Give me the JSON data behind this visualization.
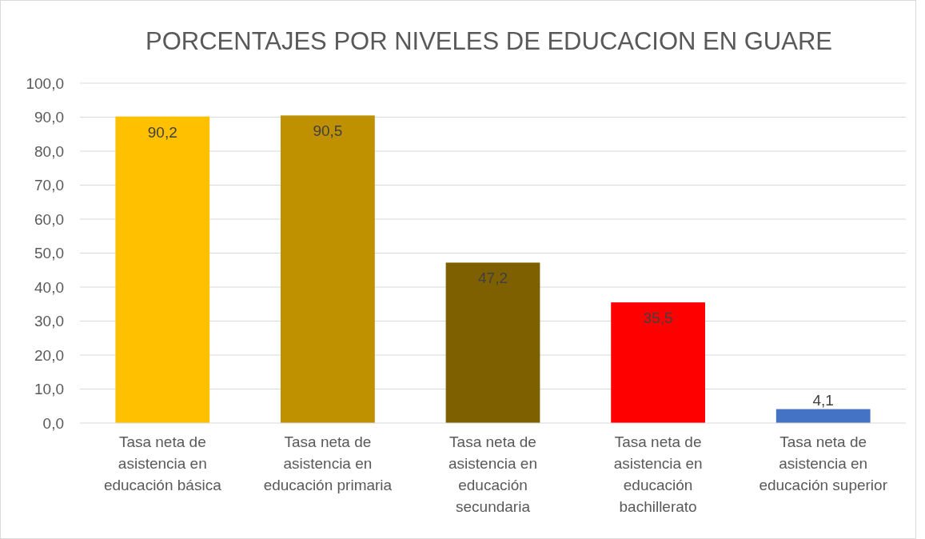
{
  "chart_data": {
    "type": "bar",
    "title": "PORCENTAJES POR NIVELES DE EDUCACION EN GUARE",
    "categories": [
      "Tasa neta de asistencia en educación básica",
      "Tasa neta de asistencia en educación primaria",
      "Tasa neta de asistencia en educación secundaria",
      "Tasa neta de asistencia en educación bachillerato",
      "Tasa neta de asistencia en educación superior"
    ],
    "values": [
      90.2,
      90.5,
      47.2,
      35.5,
      4.1
    ],
    "colors": [
      "#ffc000",
      "#bf9000",
      "#7f6000",
      "#ff0000",
      "#4472c4"
    ],
    "value_labels": [
      "90,2",
      "90,5",
      "47,2",
      "35,5",
      "4,1"
    ],
    "ylim": [
      0,
      100
    ],
    "yticks": [
      {
        "value": 0,
        "label": "0,0"
      },
      {
        "value": 10,
        "label": "10,0"
      },
      {
        "value": 20,
        "label": "20,0"
      },
      {
        "value": 30,
        "label": "30,0"
      },
      {
        "value": 40,
        "label": "40,0"
      },
      {
        "value": 50,
        "label": "50,0"
      },
      {
        "value": 60,
        "label": "60,0"
      },
      {
        "value": 70,
        "label": "70,0"
      },
      {
        "value": 80,
        "label": "80,0"
      },
      {
        "value": 90,
        "label": "90,0"
      },
      {
        "value": 100,
        "label": "100,0"
      }
    ],
    "grid": "y"
  }
}
